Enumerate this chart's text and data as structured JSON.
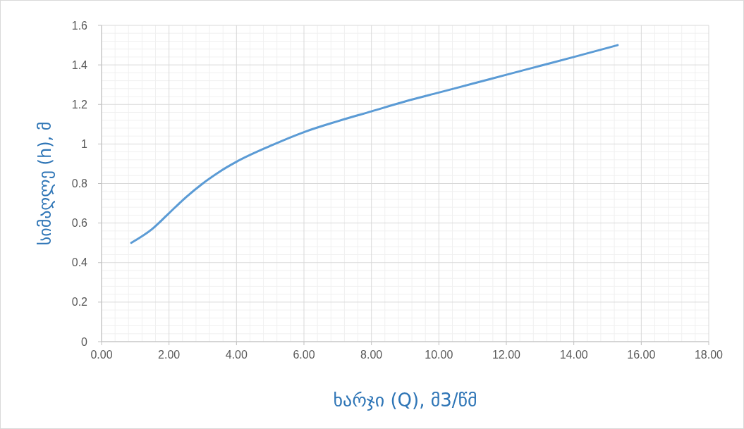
{
  "chart_data": {
    "type": "line",
    "xlabel": "ხარჯი (Q),  მ3/წმ",
    "ylabel": "სიმაღლე (h), მ",
    "x": [
      0.88,
      1.5,
      2,
      2.5,
      3,
      3.5,
      4,
      5,
      6,
      7,
      8,
      9,
      10,
      11,
      12,
      13,
      14,
      15.3
    ],
    "series": [
      {
        "color": "#5b9bd5",
        "values": [
          0.5,
          0.57,
          0.65,
          0.73,
          0.8,
          0.86,
          0.91,
          0.99,
          1.06,
          1.115,
          1.165,
          1.215,
          1.26,
          1.305,
          1.35,
          1.395,
          1.44,
          1.5
        ]
      }
    ],
    "xlim": [
      0,
      18
    ],
    "xticks": [
      {
        "value": 0,
        "label": "0.00"
      },
      {
        "value": 2,
        "label": "2.00"
      },
      {
        "value": 4,
        "label": "4.00"
      },
      {
        "value": 6,
        "label": "6.00"
      },
      {
        "value": 8,
        "label": "8.00"
      },
      {
        "value": 10,
        "label": "10.00"
      },
      {
        "value": 12,
        "label": "12.00"
      },
      {
        "value": 14,
        "label": "14.00"
      },
      {
        "value": 16,
        "label": "16.00"
      },
      {
        "value": 18,
        "label": "18.00"
      }
    ],
    "ylim": [
      0,
      1.6
    ],
    "yticks": [
      0,
      0.2,
      0.4,
      0.6,
      0.8,
      1,
      1.2,
      1.4,
      1.6
    ],
    "grid": true,
    "marker": "none",
    "line_style": "solid"
  }
}
